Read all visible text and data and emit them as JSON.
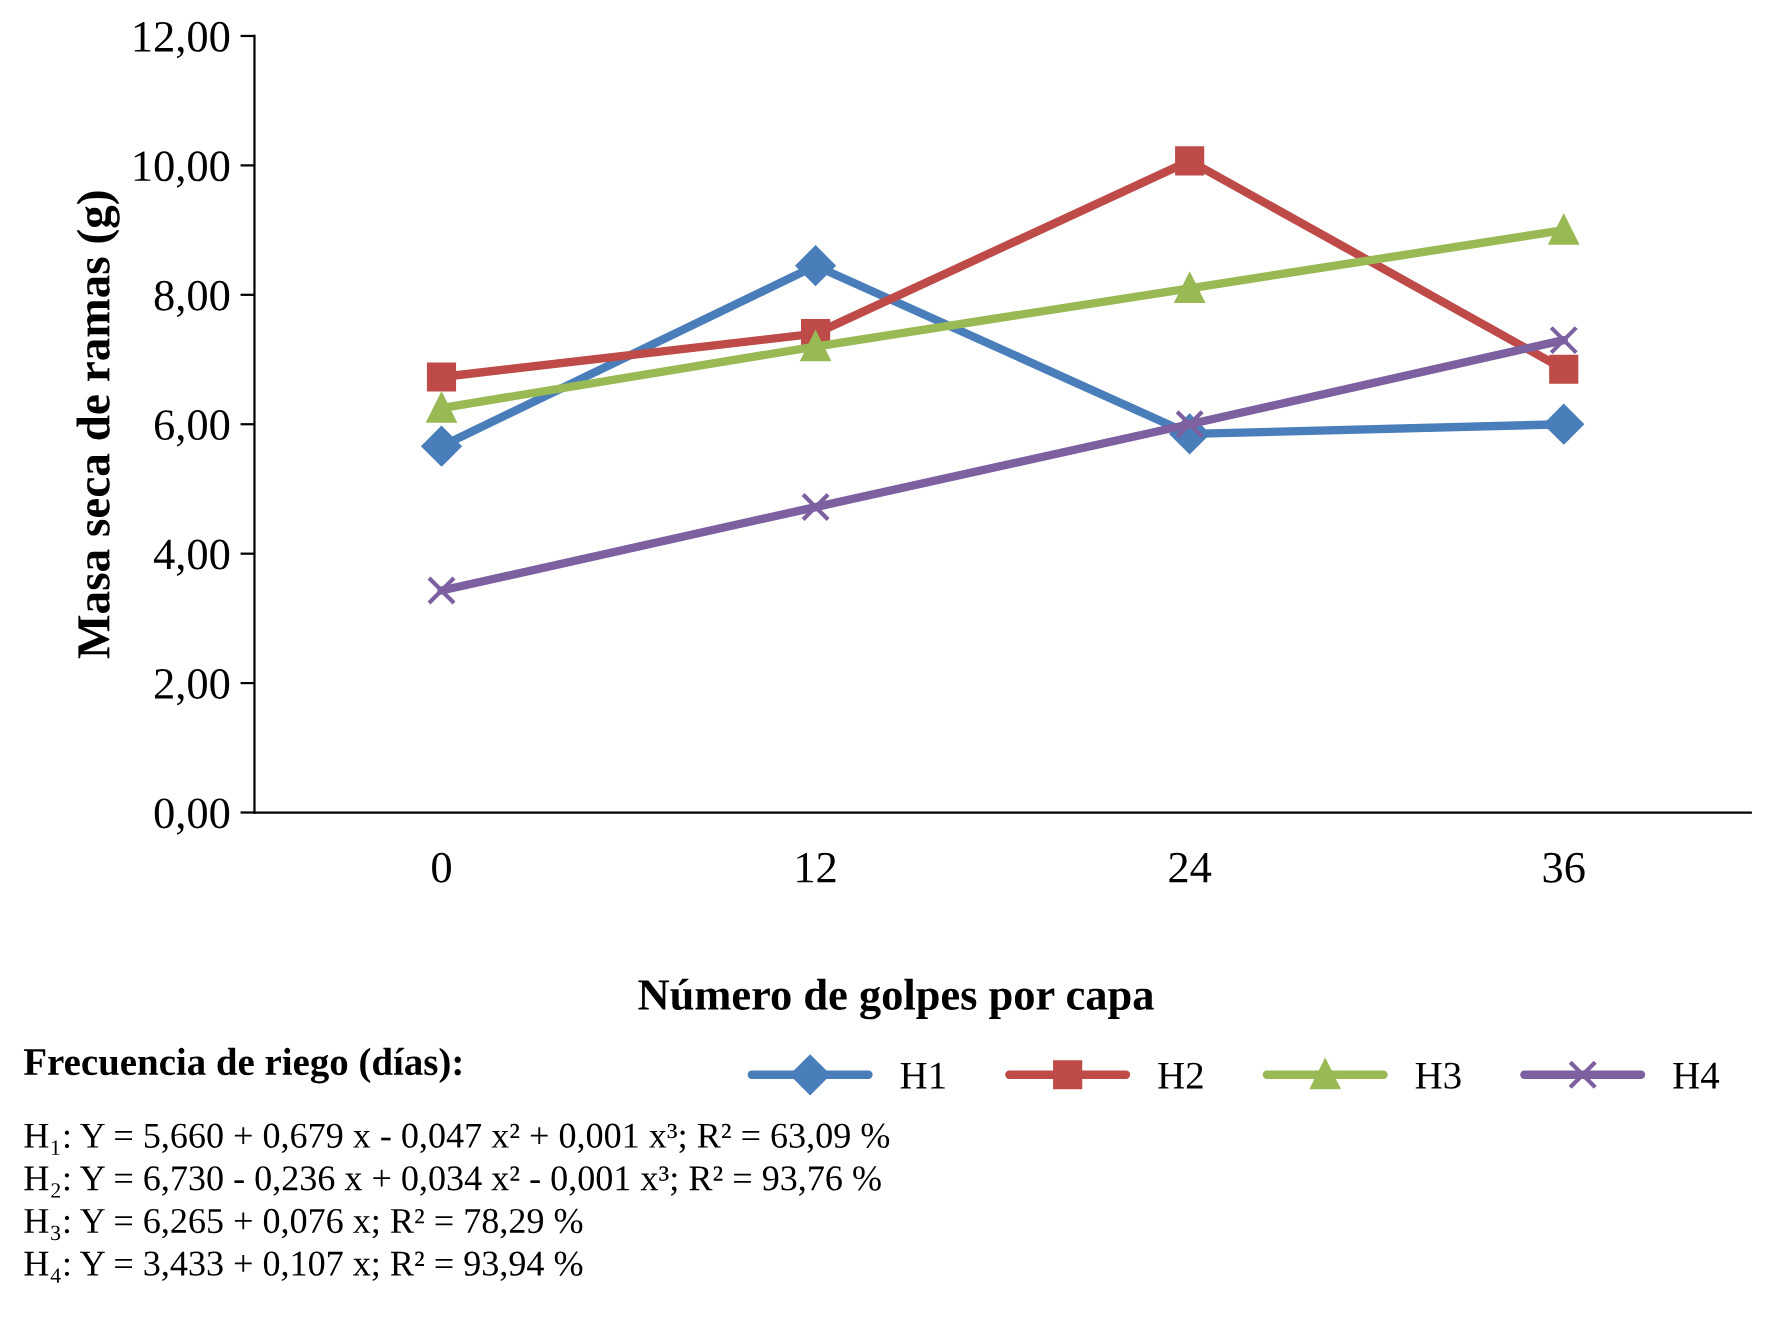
{
  "chart_data": {
    "type": "line",
    "xlabel": "Número de golpes por capa",
    "ylabel": "Masa seca de ramas (g)",
    "legend_title": "Frecuencia de riego (días):",
    "categories": [
      "0",
      "12",
      "24",
      "36"
    ],
    "series": [
      {
        "name": "H1",
        "color": "#4a7ebb",
        "marker": "diamond",
        "values": [
          5.66,
          8.45,
          5.85,
          6.0
        ]
      },
      {
        "name": "H2",
        "color": "#be4b48",
        "marker": "square",
        "values": [
          6.73,
          7.4,
          10.07,
          6.85
        ]
      },
      {
        "name": "H3",
        "color": "#98b954",
        "marker": "triangle",
        "values": [
          6.25,
          7.2,
          8.1,
          9.0
        ]
      },
      {
        "name": "H4",
        "color": "#7d60a0",
        "marker": "cross",
        "values": [
          3.43,
          4.72,
          6.0,
          7.3
        ]
      }
    ],
    "ylim": [
      0,
      12
    ],
    "yticks": [
      {
        "value": 0,
        "label": "0,00"
      },
      {
        "value": 2,
        "label": "2,00"
      },
      {
        "value": 4,
        "label": "4,00"
      },
      {
        "value": 6,
        "label": "6,00"
      },
      {
        "value": 8,
        "label": "8,00"
      },
      {
        "value": 10,
        "label": "10,00"
      },
      {
        "value": 12,
        "label": "12,00"
      }
    ],
    "grid": false,
    "legend": "bottom",
    "line_style": "solid",
    "annotations": [
      "H₁: Y = 5,660 + 0,679 x - 0,047 x² + 0,001 x³; R² = 63,09 %",
      "H₂: Y = 6,730 - 0,236 x + 0,034 x² - 0,001 x³; R² = 93,76 %",
      "H₃: Y = 6,265 + 0,076 x; R² = 78,29 %",
      "H₄: Y = 3,433 + 0,107 x; R² = 93,94 %"
    ]
  }
}
